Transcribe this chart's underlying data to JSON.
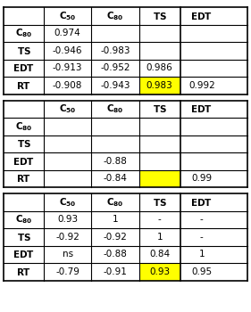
{
  "tables": [
    {
      "headers": [
        "",
        "C50",
        "C80",
        "TS",
        "EDT"
      ],
      "rows": [
        [
          "C80",
          "0.974",
          "",
          "",
          ""
        ],
        [
          "TS",
          "-0.946",
          "-0.983",
          "",
          ""
        ],
        [
          "EDT",
          "-0.913",
          "-0.952",
          "0.986",
          ""
        ],
        [
          "RT",
          "-0.908",
          "-0.943",
          "0.983",
          "0.992"
        ]
      ],
      "highlight_row": 4,
      "highlight_col": 4
    },
    {
      "headers": [
        "",
        "C50",
        "C80",
        "TS",
        "EDT"
      ],
      "rows": [
        [
          "C80",
          "",
          "",
          "",
          ""
        ],
        [
          "TS",
          "",
          "",
          "",
          ""
        ],
        [
          "EDT",
          "",
          "-0.88",
          "",
          ""
        ],
        [
          "RT",
          "",
          "-0.84",
          "",
          "0.99"
        ]
      ],
      "highlight_row": 4,
      "highlight_col": 4
    },
    {
      "headers": [
        "",
        "C50",
        "C80",
        "TS",
        "EDT"
      ],
      "rows": [
        [
          "C80",
          "0.93",
          "1",
          "-",
          "-"
        ],
        [
          "TS",
          "-0.92",
          "-0.92",
          "1",
          "-"
        ],
        [
          "EDT",
          "ns",
          "-0.88",
          "0.84",
          "1"
        ],
        [
          "RT",
          "-0.79",
          "-0.91",
          "0.93",
          "0.95"
        ]
      ],
      "highlight_row": 4,
      "highlight_col": 4
    }
  ],
  "highlight_color": "#FFFF00",
  "border_color": "#000000",
  "bg_color": "#FFFFFF",
  "font_size": 7.5
}
